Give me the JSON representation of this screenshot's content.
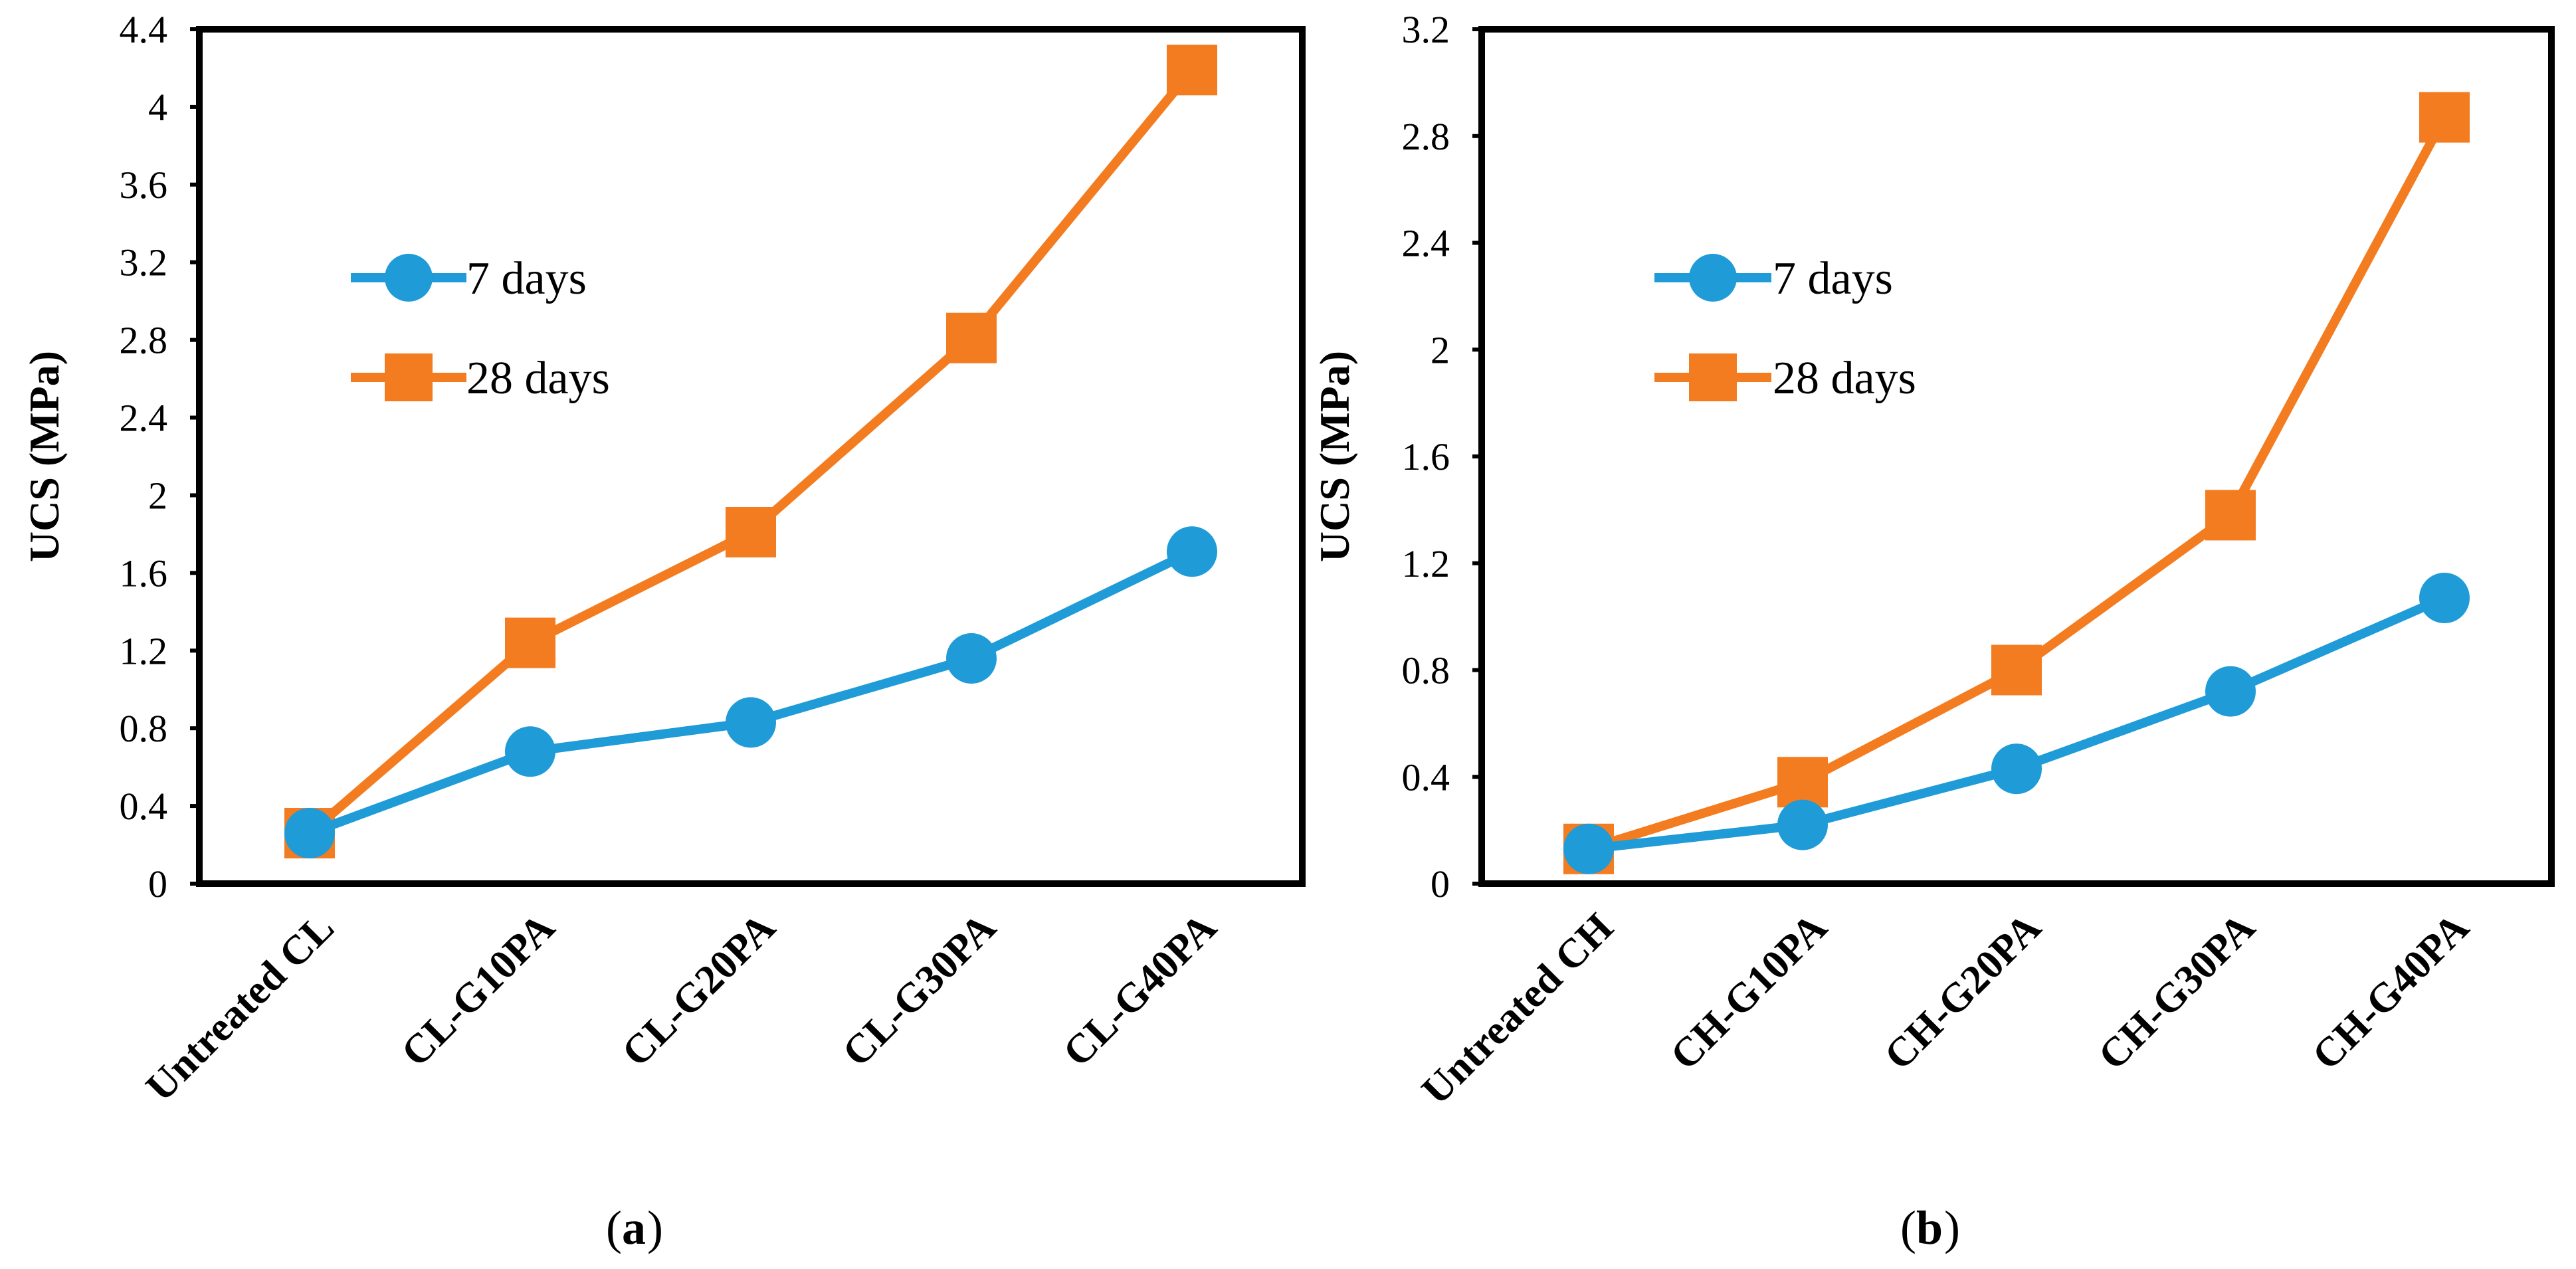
{
  "figure": {
    "caption_a": "a",
    "caption_b": "b"
  },
  "chart_data": [
    {
      "type": "line",
      "panel": "a",
      "title": "",
      "xlabel": "",
      "ylabel": "UCS (MPa)",
      "ylim": [
        0,
        4.4
      ],
      "yticks": [
        "0",
        "0.4",
        "0.8",
        "1.2",
        "1.6",
        "2",
        "2.4",
        "2.8",
        "3.2",
        "3.6",
        "4",
        "4.4"
      ],
      "categories": [
        "Untreated CL",
        "CL-G10PA",
        "CL-G20PA",
        "CL-G30PA",
        "CL-G40PA"
      ],
      "legend_position": "upper-left",
      "grid": false,
      "series": [
        {
          "name": "7 days",
          "color": "#1f9bd7",
          "marker": "circle",
          "values": [
            0.26,
            0.68,
            0.83,
            1.16,
            1.71
          ]
        },
        {
          "name": "28 days",
          "color": "#f47c20",
          "marker": "square",
          "values": [
            0.26,
            1.24,
            1.81,
            2.81,
            4.19
          ]
        }
      ]
    },
    {
      "type": "line",
      "panel": "b",
      "title": "",
      "xlabel": "",
      "ylabel": "UCS (MPa)",
      "ylim": [
        0,
        3.2
      ],
      "yticks": [
        "0",
        "0.4",
        "0.8",
        "1.2",
        "1.6",
        "2",
        "2.4",
        "2.8",
        "3.2"
      ],
      "categories": [
        "Untreated CH",
        "CH-G10PA",
        "CH-G20PA",
        "CH-G30PA",
        "CH-G40PA"
      ],
      "legend_position": "upper-left",
      "grid": false,
      "series": [
        {
          "name": "7 days",
          "color": "#1f9bd7",
          "marker": "circle",
          "values": [
            0.13,
            0.22,
            0.43,
            0.72,
            1.07
          ]
        },
        {
          "name": "28 days",
          "color": "#f47c20",
          "marker": "square",
          "values": [
            0.13,
            0.38,
            0.8,
            1.38,
            2.87
          ]
        }
      ]
    }
  ]
}
